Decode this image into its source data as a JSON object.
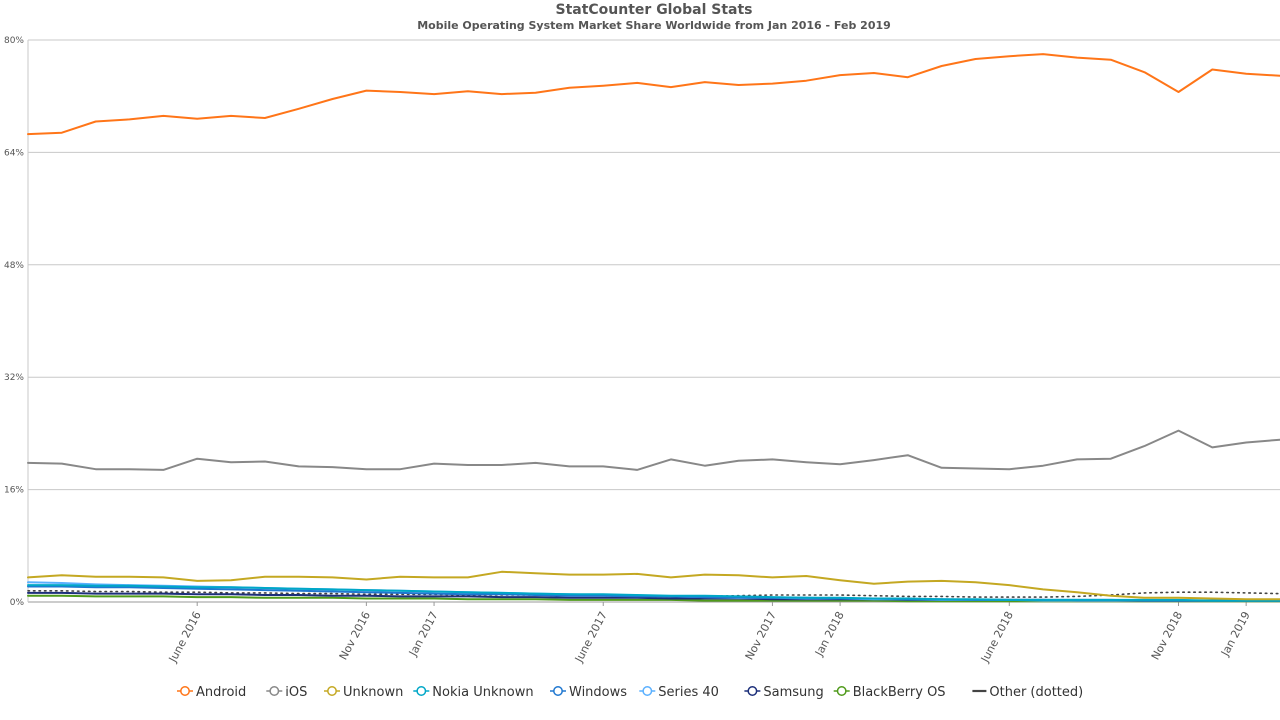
{
  "chart_data": {
    "type": "line",
    "title": "StatCounter Global Stats",
    "subtitle": "Mobile Operating System Market Share Worldwide from Jan 2016 - Feb 2019",
    "ylim": [
      0,
      80
    ],
    "y_ticks": [
      0,
      16,
      32,
      48,
      64,
      80
    ],
    "y_tick_labels": [
      "0%",
      "16%",
      "32%",
      "48%",
      "64%",
      "80%"
    ],
    "y_unit": "%",
    "grid": true,
    "legend_position": "bottom",
    "x": [
      "Jan 2016",
      "Feb 2016",
      "Mar 2016",
      "Apr 2016",
      "May 2016",
      "June 2016",
      "July 2016",
      "Aug 2016",
      "Sept 2016",
      "Oct 2016",
      "Nov 2016",
      "Dec 2016",
      "Jan 2017",
      "Feb 2017",
      "Mar 2017",
      "Apr 2017",
      "May 2017",
      "June 2017",
      "July 2017",
      "Aug 2017",
      "Sept 2017",
      "Oct 2017",
      "Nov 2017",
      "Dec 2017",
      "Jan 2018",
      "Feb 2018",
      "Mar 2018",
      "Apr 2018",
      "May 2018",
      "June 2018",
      "July 2018",
      "Aug 2018",
      "Sept 2018",
      "Oct 2018",
      "Nov 2018",
      "Dec 2018",
      "Jan 2019",
      "Feb 2019"
    ],
    "x_tick_labels": [
      {
        "index": 5,
        "label": "June 2016"
      },
      {
        "index": 10,
        "label": "Nov 2016"
      },
      {
        "index": 12,
        "label": "Jan 2017"
      },
      {
        "index": 17,
        "label": "June 2017"
      },
      {
        "index": 22,
        "label": "Nov 2017"
      },
      {
        "index": 24,
        "label": "Jan 2018"
      },
      {
        "index": 29,
        "label": "June 2018"
      },
      {
        "index": 34,
        "label": "Nov 2018"
      },
      {
        "index": 36,
        "label": "Jan 2019"
      }
    ],
    "series": [
      {
        "name": "Android",
        "color": "#ff7518",
        "dotted": false,
        "values": [
          66.6,
          66.8,
          68.4,
          68.7,
          69.2,
          68.8,
          69.2,
          68.9,
          70.2,
          71.6,
          72.8,
          72.6,
          72.3,
          72.7,
          72.3,
          72.5,
          73.2,
          73.5,
          73.9,
          73.3,
          74.0,
          73.6,
          73.8,
          74.2,
          75.0,
          75.3,
          74.7,
          76.3,
          77.3,
          77.7,
          78.0,
          77.5,
          77.2,
          75.4,
          72.6,
          75.8,
          75.2,
          74.9
        ]
      },
      {
        "name": "iOS",
        "color": "#888888",
        "dotted": false,
        "values": [
          19.8,
          19.7,
          18.9,
          18.9,
          18.8,
          20.4,
          19.9,
          20.0,
          19.3,
          19.2,
          18.9,
          18.9,
          19.7,
          19.5,
          19.5,
          19.8,
          19.3,
          19.3,
          18.8,
          20.3,
          19.4,
          20.1,
          20.3,
          19.9,
          19.6,
          20.2,
          20.9,
          19.1,
          19.0,
          18.9,
          19.4,
          20.3,
          20.4,
          22.2,
          24.4,
          22.0,
          22.7,
          23.1
        ]
      },
      {
        "name": "Unknown",
        "color": "#c4a822",
        "dotted": false,
        "values": [
          3.5,
          3.8,
          3.6,
          3.6,
          3.5,
          3.0,
          3.1,
          3.6,
          3.6,
          3.5,
          3.2,
          3.6,
          3.5,
          3.5,
          4.3,
          4.1,
          3.9,
          3.9,
          4.0,
          3.5,
          3.9,
          3.8,
          3.5,
          3.7,
          3.1,
          2.6,
          2.9,
          3.0,
          2.8,
          2.4,
          1.8,
          1.4,
          0.9,
          0.6,
          0.6,
          0.5,
          0.4,
          0.4
        ]
      },
      {
        "name": "Nokia Unknown",
        "color": "#00a7c7",
        "dotted": false,
        "values": [
          2.4,
          2.4,
          2.3,
          2.3,
          2.2,
          2.1,
          2.1,
          2.0,
          1.9,
          1.8,
          1.7,
          1.6,
          1.5,
          1.4,
          1.3,
          1.2,
          1.1,
          1.1,
          1.0,
          0.9,
          0.9,
          0.8,
          0.7,
          0.6,
          0.6,
          0.5,
          0.5,
          0.4,
          0.4,
          0.3,
          0.3,
          0.3,
          0.3,
          0.3,
          0.3,
          0.2,
          0.2,
          0.2
        ]
      },
      {
        "name": "Windows",
        "color": "#1f77d0",
        "dotted": false,
        "values": [
          2.2,
          2.2,
          2.1,
          2.1,
          2.0,
          1.9,
          1.8,
          1.7,
          1.6,
          1.5,
          1.4,
          1.3,
          1.2,
          1.1,
          1.1,
          1.0,
          0.9,
          0.9,
          0.8,
          0.8,
          0.7,
          0.7,
          0.6,
          0.6,
          0.5,
          0.5,
          0.4,
          0.4,
          0.3,
          0.3,
          0.3,
          0.3,
          0.3,
          0.2,
          0.2,
          0.2,
          0.2,
          0.2
        ]
      },
      {
        "name": "Series 40",
        "color": "#5ab0ff",
        "dotted": false,
        "values": [
          2.8,
          2.7,
          2.5,
          2.4,
          2.3,
          2.2,
          2.1,
          2.0,
          1.9,
          1.8,
          1.7,
          1.6,
          1.5,
          1.4,
          1.3,
          1.2,
          1.1,
          1.0,
          0.9,
          0.8,
          0.7,
          0.6,
          0.6,
          0.5,
          0.5,
          0.4,
          0.4,
          0.3,
          0.3,
          0.3,
          0.2,
          0.2,
          0.2,
          0.2,
          0.2,
          0.2,
          0.2,
          0.2
        ]
      },
      {
        "name": "Samsung",
        "color": "#1c2f7a",
        "dotted": false,
        "values": [
          1.3,
          1.3,
          1.2,
          1.2,
          1.2,
          1.1,
          1.1,
          1.0,
          1.0,
          0.9,
          0.9,
          0.8,
          0.8,
          0.8,
          0.7,
          0.7,
          0.6,
          0.6,
          0.6,
          0.5,
          0.5,
          0.5,
          0.4,
          0.4,
          0.4,
          0.4,
          0.3,
          0.3,
          0.3,
          0.3,
          0.3,
          0.2,
          0.2,
          0.2,
          0.2,
          0.2,
          0.2,
          0.2
        ]
      },
      {
        "name": "BlackBerry OS",
        "color": "#4f9a1a",
        "dotted": false,
        "values": [
          0.9,
          0.9,
          0.8,
          0.8,
          0.8,
          0.7,
          0.7,
          0.6,
          0.6,
          0.6,
          0.5,
          0.5,
          0.5,
          0.4,
          0.4,
          0.4,
          0.3,
          0.3,
          0.3,
          0.3,
          0.2,
          0.2,
          0.2,
          0.2,
          0.2,
          0.2,
          0.1,
          0.1,
          0.1,
          0.1,
          0.1,
          0.1,
          0.1,
          0.1,
          0.1,
          0.1,
          0.1,
          0.1
        ]
      },
      {
        "name": "Other (dotted)",
        "color": "#444444",
        "dotted": true,
        "values": [
          1.6,
          1.6,
          1.5,
          1.5,
          1.4,
          1.4,
          1.3,
          1.3,
          1.2,
          1.2,
          1.1,
          1.1,
          1.1,
          1.0,
          1.0,
          1.0,
          0.9,
          0.9,
          0.8,
          0.8,
          0.8,
          0.9,
          1.0,
          1.0,
          1.0,
          0.9,
          0.8,
          0.8,
          0.7,
          0.7,
          0.7,
          0.8,
          1.0,
          1.3,
          1.4,
          1.4,
          1.3,
          1.2
        ]
      }
    ]
  }
}
